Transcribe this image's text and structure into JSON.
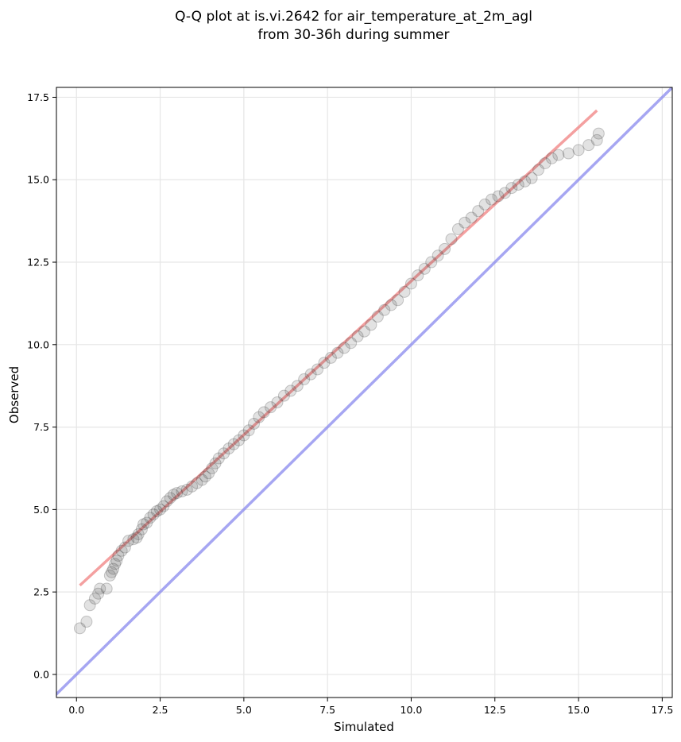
{
  "chart_data": {
    "type": "scatter",
    "title": "Q-Q plot at is.vi.2642 for air_temperature_at_2m_agl",
    "subtitle": "from 30-36h during summer",
    "xlabel": "Simulated",
    "ylabel": "Observed",
    "xlim": [
      -0.6,
      17.8
    ],
    "ylim": [
      -0.7,
      17.8
    ],
    "xticks": [
      "0.0",
      "2.5",
      "5.0",
      "7.5",
      "10.0",
      "12.5",
      "15.0",
      "17.5"
    ],
    "yticks": [
      "0.0",
      "2.5",
      "5.0",
      "7.5",
      "10.0",
      "12.5",
      "15.0",
      "17.5"
    ],
    "grid": true,
    "colors": {
      "points": "#333333",
      "fit_line": "#f08080",
      "identity_line": "#8888ee",
      "grid": "#e6e6e6"
    },
    "fit_line": {
      "x": [
        0.1,
        15.55
      ],
      "y": [
        2.7,
        17.1
      ]
    },
    "identity_line": {
      "x": [
        -0.7,
        17.9
      ],
      "y": [
        -0.7,
        17.9
      ]
    },
    "quantile_points": [
      [
        0.1,
        1.4
      ],
      [
        0.3,
        1.6
      ],
      [
        0.4,
        2.1
      ],
      [
        0.55,
        2.3
      ],
      [
        0.65,
        2.45
      ],
      [
        0.7,
        2.6
      ],
      [
        0.9,
        2.6
      ],
      [
        1.0,
        3.0
      ],
      [
        1.05,
        3.1
      ],
      [
        1.1,
        3.2
      ],
      [
        1.15,
        3.35
      ],
      [
        1.2,
        3.45
      ],
      [
        1.25,
        3.6
      ],
      [
        1.35,
        3.75
      ],
      [
        1.45,
        3.85
      ],
      [
        1.55,
        4.05
      ],
      [
        1.7,
        4.1
      ],
      [
        1.8,
        4.15
      ],
      [
        1.85,
        4.25
      ],
      [
        1.95,
        4.4
      ],
      [
        2.0,
        4.55
      ],
      [
        2.1,
        4.6
      ],
      [
        2.2,
        4.75
      ],
      [
        2.3,
        4.85
      ],
      [
        2.4,
        4.95
      ],
      [
        2.5,
        5.0
      ],
      [
        2.6,
        5.1
      ],
      [
        2.7,
        5.25
      ],
      [
        2.8,
        5.35
      ],
      [
        2.9,
        5.45
      ],
      [
        3.0,
        5.5
      ],
      [
        3.15,
        5.55
      ],
      [
        3.3,
        5.6
      ],
      [
        3.45,
        5.7
      ],
      [
        3.6,
        5.8
      ],
      [
        3.75,
        5.9
      ],
      [
        3.85,
        6.0
      ],
      [
        3.95,
        6.1
      ],
      [
        4.05,
        6.25
      ],
      [
        4.15,
        6.4
      ],
      [
        4.25,
        6.55
      ],
      [
        4.4,
        6.7
      ],
      [
        4.55,
        6.85
      ],
      [
        4.7,
        6.98
      ],
      [
        4.85,
        7.1
      ],
      [
        5.0,
        7.25
      ],
      [
        5.15,
        7.4
      ],
      [
        5.3,
        7.6
      ],
      [
        5.45,
        7.8
      ],
      [
        5.6,
        7.95
      ],
      [
        5.8,
        8.1
      ],
      [
        6.0,
        8.25
      ],
      [
        6.2,
        8.45
      ],
      [
        6.4,
        8.6
      ],
      [
        6.6,
        8.75
      ],
      [
        6.8,
        8.95
      ],
      [
        7.0,
        9.1
      ],
      [
        7.2,
        9.25
      ],
      [
        7.4,
        9.45
      ],
      [
        7.6,
        9.6
      ],
      [
        7.8,
        9.75
      ],
      [
        8.0,
        9.9
      ],
      [
        8.2,
        10.05
      ],
      [
        8.4,
        10.25
      ],
      [
        8.6,
        10.4
      ],
      [
        8.8,
        10.6
      ],
      [
        9.0,
        10.85
      ],
      [
        9.2,
        11.05
      ],
      [
        9.4,
        11.2
      ],
      [
        9.6,
        11.35
      ],
      [
        9.8,
        11.6
      ],
      [
        10.0,
        11.85
      ],
      [
        10.2,
        12.1
      ],
      [
        10.4,
        12.3
      ],
      [
        10.6,
        12.5
      ],
      [
        10.8,
        12.7
      ],
      [
        11.0,
        12.9
      ],
      [
        11.2,
        13.2
      ],
      [
        11.4,
        13.5
      ],
      [
        11.6,
        13.7
      ],
      [
        11.8,
        13.85
      ],
      [
        12.0,
        14.05
      ],
      [
        12.2,
        14.25
      ],
      [
        12.4,
        14.4
      ],
      [
        12.6,
        14.5
      ],
      [
        12.8,
        14.6
      ],
      [
        13.0,
        14.75
      ],
      [
        13.2,
        14.85
      ],
      [
        13.4,
        14.95
      ],
      [
        13.6,
        15.05
      ],
      [
        13.8,
        15.3
      ],
      [
        14.0,
        15.5
      ],
      [
        14.2,
        15.65
      ],
      [
        14.4,
        15.75
      ],
      [
        14.7,
        15.8
      ],
      [
        15.0,
        15.9
      ],
      [
        15.3,
        16.05
      ],
      [
        15.55,
        16.2
      ],
      [
        15.6,
        16.4
      ]
    ]
  }
}
